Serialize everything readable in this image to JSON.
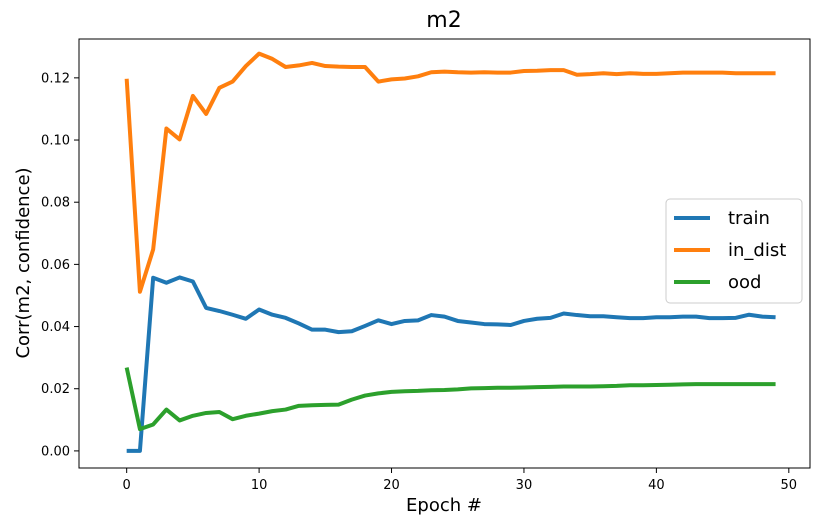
{
  "chart_data": {
    "type": "line",
    "title": "m2",
    "xlabel": "Epoch #",
    "ylabel": "Corr(m2, confidence)",
    "xlim": [
      -3.6,
      51.6
    ],
    "ylim": [
      -0.0055,
      0.1325
    ],
    "xticks": [
      0,
      10,
      20,
      30,
      40,
      50
    ],
    "xtick_labels": [
      "0",
      "10",
      "20",
      "30",
      "40",
      "50"
    ],
    "yticks": [
      0.0,
      0.02,
      0.04,
      0.06,
      0.08,
      0.1,
      0.12
    ],
    "ytick_labels": [
      "0.00",
      "0.02",
      "0.04",
      "0.06",
      "0.08",
      "0.10",
      "0.12"
    ],
    "grid": false,
    "legend_position": "center-right",
    "x": [
      0,
      1,
      2,
      3,
      4,
      5,
      6,
      7,
      8,
      9,
      10,
      11,
      12,
      13,
      14,
      15,
      16,
      17,
      18,
      19,
      20,
      21,
      22,
      23,
      24,
      25,
      26,
      27,
      28,
      29,
      30,
      31,
      32,
      33,
      34,
      35,
      36,
      37,
      38,
      39,
      40,
      41,
      42,
      43,
      44,
      45,
      46,
      47,
      48,
      49
    ],
    "series": [
      {
        "name": "train",
        "color": "#1f77b4",
        "values": [
          0.0,
          0.0,
          0.0557,
          0.0541,
          0.0558,
          0.0545,
          0.046,
          0.045,
          0.0438,
          0.0425,
          0.0455,
          0.0438,
          0.0428,
          0.041,
          0.039,
          0.039,
          0.0382,
          0.0385,
          0.0402,
          0.042,
          0.0408,
          0.0418,
          0.042,
          0.0437,
          0.0432,
          0.0418,
          0.0413,
          0.0408,
          0.0407,
          0.0405,
          0.0418,
          0.0425,
          0.0428,
          0.0442,
          0.0437,
          0.0433,
          0.0433,
          0.043,
          0.0427,
          0.0427,
          0.043,
          0.043,
          0.0432,
          0.0432,
          0.0427,
          0.0427,
          0.0428,
          0.0438,
          0.0432,
          0.043
        ]
      },
      {
        "name": "in_dist",
        "color": "#ff7f0e",
        "values": [
          0.1197,
          0.0512,
          0.0648,
          0.1037,
          0.1002,
          0.1142,
          0.1084,
          0.1168,
          0.1188,
          0.1238,
          0.1278,
          0.1261,
          0.1235,
          0.124,
          0.1248,
          0.1238,
          0.1236,
          0.1235,
          0.1235,
          0.1188,
          0.1195,
          0.1198,
          0.1205,
          0.1218,
          0.122,
          0.1218,
          0.1217,
          0.1218,
          0.1217,
          0.1217,
          0.1222,
          0.1223,
          0.1225,
          0.1225,
          0.121,
          0.1212,
          0.1215,
          0.1212,
          0.1215,
          0.1213,
          0.1213,
          0.1215,
          0.1217,
          0.1217,
          0.1217,
          0.1217,
          0.1215,
          0.1215,
          0.1215,
          0.1215
        ]
      },
      {
        "name": "ood",
        "color": "#2ca02c",
        "values": [
          0.0268,
          0.007,
          0.0085,
          0.0133,
          0.0098,
          0.0113,
          0.0122,
          0.0125,
          0.0102,
          0.0113,
          0.012,
          0.0128,
          0.0133,
          0.0145,
          0.0147,
          0.0148,
          0.0149,
          0.0165,
          0.0178,
          0.0185,
          0.019,
          0.0192,
          0.0193,
          0.0195,
          0.0196,
          0.0198,
          0.0201,
          0.0202,
          0.0203,
          0.0203,
          0.0204,
          0.0205,
          0.0206,
          0.0207,
          0.0207,
          0.0207,
          0.0208,
          0.0209,
          0.0211,
          0.0211,
          0.0212,
          0.0213,
          0.0214,
          0.0215,
          0.0215,
          0.0215,
          0.0215,
          0.0215,
          0.0215,
          0.0215
        ]
      }
    ]
  }
}
